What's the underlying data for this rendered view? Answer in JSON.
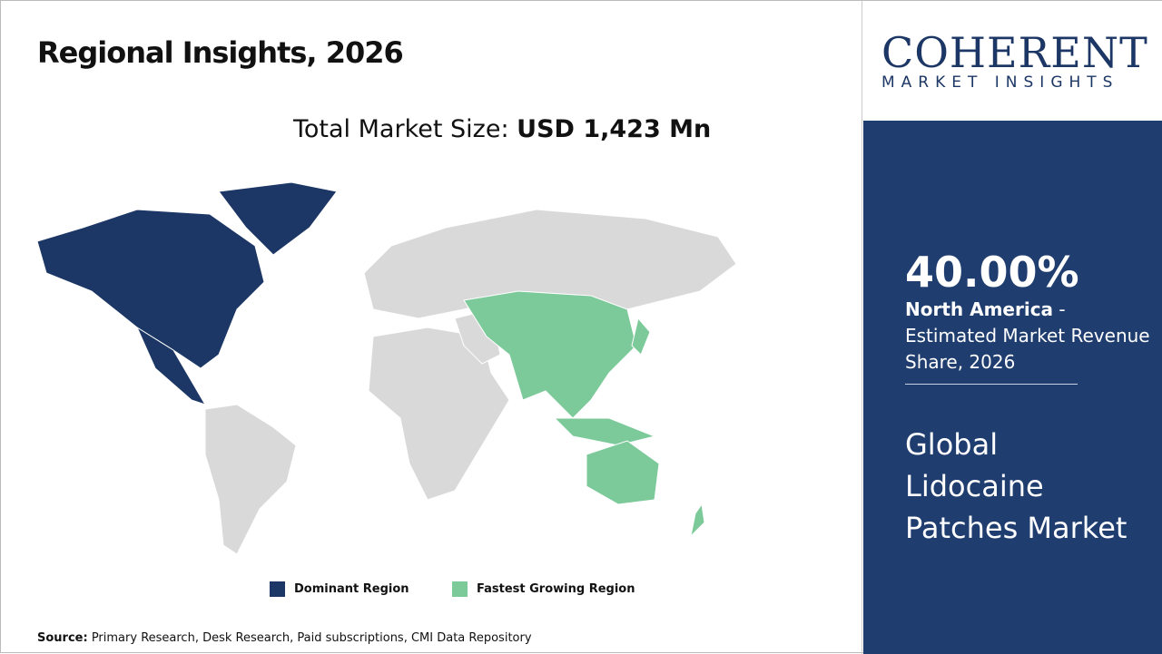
{
  "header": {
    "title": "Regional Insights, 2026",
    "total_label": "Total Market Size: ",
    "total_value": "USD 1,423 Mn"
  },
  "legend": [
    {
      "label": "Dominant Region",
      "color": "#1c3765"
    },
    {
      "label": "Fastest Growing Region",
      "color": "#7cc99a"
    }
  ],
  "source": {
    "label": "Source:",
    "text": " Primary Research, Desk Research, Paid subscriptions, CMI Data Repository"
  },
  "logo": {
    "top": "COHERENT",
    "bottom": "MARKET INSIGHTS"
  },
  "panel": {
    "percent": "40.00%",
    "region": "North America",
    "desc": " - Estimated Market Revenue Share, 2026",
    "market": "Global Lidocaine Patches Market"
  },
  "colors": {
    "dominant": "#1c3765",
    "fastest": "#7cc99a",
    "other": "#d9d9d9",
    "panel": "#1f3d6f"
  }
}
